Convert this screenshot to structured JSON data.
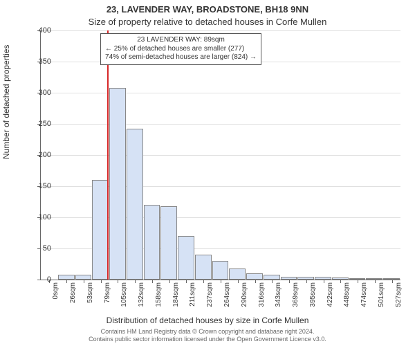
{
  "title_line1": "23, LAVENDER WAY, BROADSTONE, BH18 9NN",
  "title_line2": "Size of property relative to detached houses in Corfe Mullen",
  "ylabel": "Number of detached properties",
  "xlabel": "Distribution of detached houses by size in Corfe Mullen",
  "footer_line1": "Contains HM Land Registry data © Crown copyright and database right 2024.",
  "footer_line2": "Contains public sector information licensed under the Open Government Licence v3.0.",
  "chart": {
    "type": "histogram",
    "y_min": 0,
    "y_max": 400,
    "y_tick_step": 50,
    "categories": [
      "0sqm",
      "26sqm",
      "53sqm",
      "79sqm",
      "105sqm",
      "132sqm",
      "158sqm",
      "184sqm",
      "211sqm",
      "237sqm",
      "264sqm",
      "290sqm",
      "316sqm",
      "343sqm",
      "369sqm",
      "395sqm",
      "422sqm",
      "448sqm",
      "474sqm",
      "501sqm",
      "527sqm"
    ],
    "values": [
      0,
      8,
      8,
      160,
      308,
      242,
      120,
      118,
      70,
      40,
      30,
      18,
      10,
      8,
      5,
      4,
      4,
      3,
      2,
      1,
      1
    ],
    "bar_fill": "#d6e2f5",
    "bar_stroke": "#888888",
    "grid_color": "#e0e0e0",
    "axis_color": "#666666",
    "background": "#ffffff",
    "reference_line": {
      "value_sqm": 89,
      "color": "#d62728"
    },
    "info_box": {
      "line1": "23 LAVENDER WAY: 89sqm",
      "line2": "← 25% of detached houses are smaller (277)",
      "line3": "74% of semi-detached houses are larger (824) →",
      "border_color": "#555555",
      "background": "#ffffff"
    },
    "title_font_weight": "bold",
    "font_family": "Arial",
    "title_fontsize": 13,
    "label_fontsize": 12,
    "tick_fontsize": 11,
    "xtick_fontsize": 10,
    "box_fontsize": 10,
    "footer_fontsize": 9
  }
}
